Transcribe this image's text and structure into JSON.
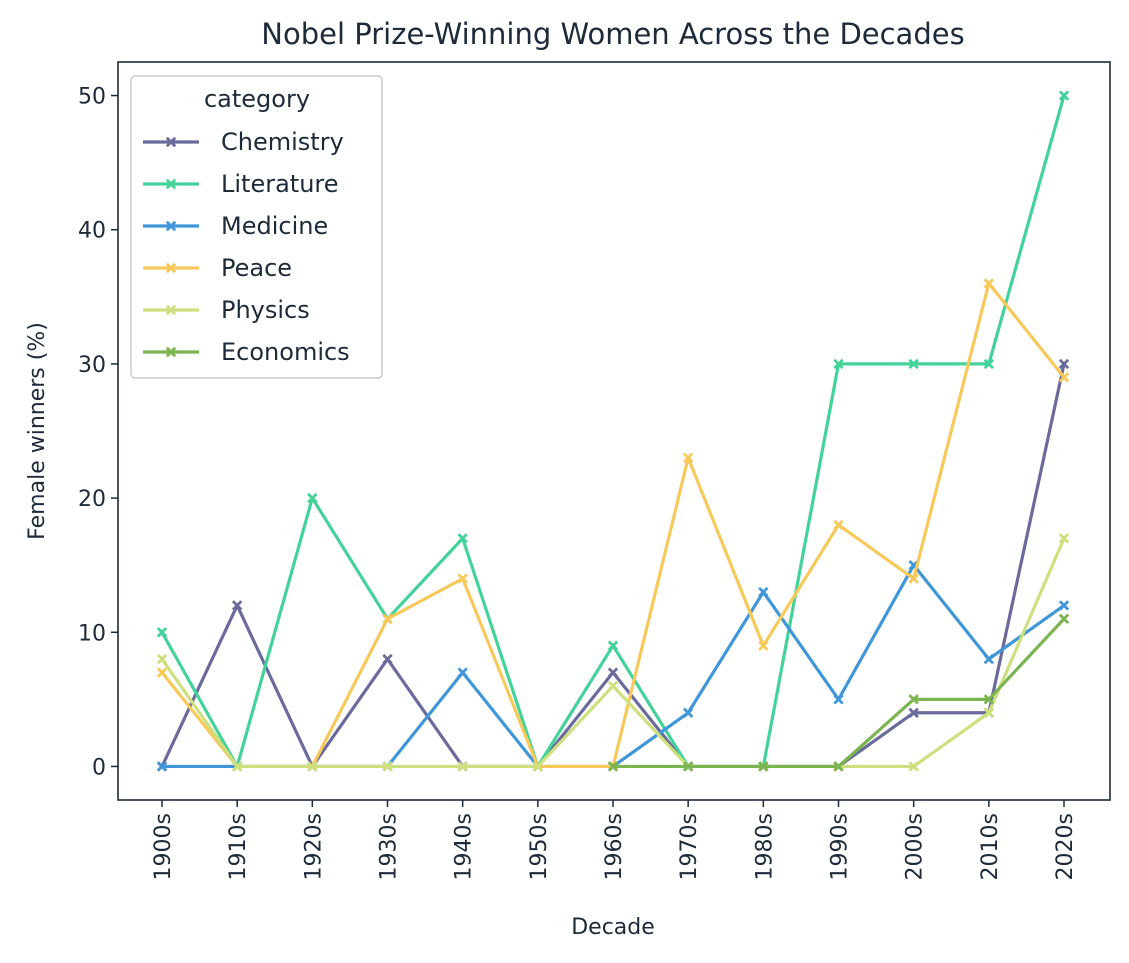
{
  "chart_data": {
    "type": "line",
    "title": "Nobel Prize-Winning Women Across the Decades",
    "xlabel": "Decade",
    "ylabel": "Female winners (%)",
    "categories": [
      "1900s",
      "1910s",
      "1920s",
      "1930s",
      "1940s",
      "1950s",
      "1960s",
      "1970s",
      "1980s",
      "1990s",
      "2000s",
      "2010s",
      "2020s"
    ],
    "ylim": [
      -2.5,
      52.5
    ],
    "yticks": [
      0,
      10,
      20,
      30,
      40,
      50
    ],
    "grid": false,
    "legend": {
      "title": "category",
      "position": "upper-left"
    },
    "marker": "x",
    "series": [
      {
        "name": "Chemistry",
        "color": "#6a6b9c",
        "values": [
          0,
          12,
          0,
          8,
          0,
          0,
          7,
          0,
          0,
          0,
          4,
          4,
          30
        ]
      },
      {
        "name": "Literature",
        "color": "#43d39a",
        "values": [
          10,
          0,
          20,
          11,
          17,
          0,
          9,
          0,
          0,
          30,
          30,
          30,
          50
        ]
      },
      {
        "name": "Medicine",
        "color": "#3f97d9",
        "values": [
          0,
          0,
          0,
          0,
          7,
          0,
          0,
          4,
          13,
          5,
          15,
          8,
          12
        ]
      },
      {
        "name": "Peace",
        "color": "#f7c95a",
        "values": [
          7,
          0,
          0,
          11,
          14,
          0,
          0,
          23,
          9,
          18,
          14,
          36,
          29
        ]
      },
      {
        "name": "Physics",
        "color": "#cde07d",
        "values": [
          8,
          0,
          0,
          0,
          0,
          0,
          6,
          0,
          0,
          0,
          0,
          4,
          17
        ]
      },
      {
        "name": "Economics",
        "color": "#7bb550",
        "values": [
          null,
          null,
          null,
          null,
          null,
          null,
          0,
          0,
          0,
          0,
          5,
          5,
          11
        ]
      }
    ]
  }
}
